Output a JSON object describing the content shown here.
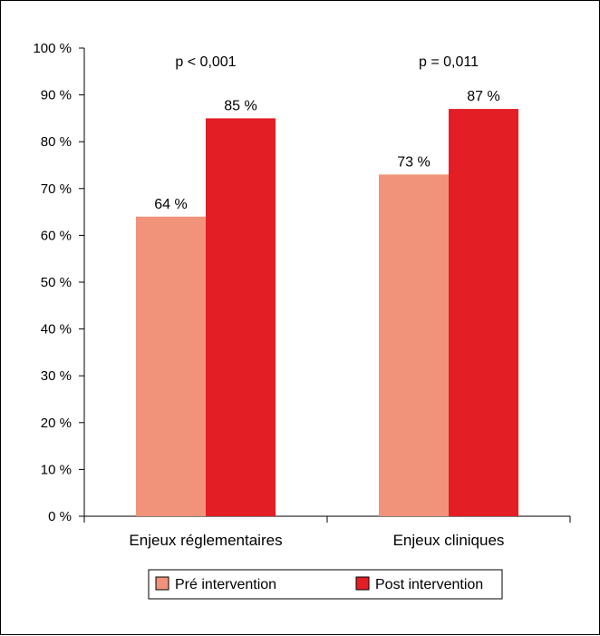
{
  "chart_data": {
    "type": "bar",
    "categories": [
      "Enjeux réglementaires",
      "Enjeux cliniques"
    ],
    "series": [
      {
        "name": "Pré intervention",
        "values": [
          64,
          73
        ],
        "labels": [
          "64 %",
          "73 %"
        ],
        "color": "#f0937a"
      },
      {
        "name": "Post intervention",
        "values": [
          85,
          87
        ],
        "labels": [
          "85 %",
          "87 %"
        ],
        "color": "#e31e25"
      }
    ],
    "annotations": [
      "p < 0,001",
      "p = 0,011"
    ],
    "y_ticks": [
      "0 %",
      "10 %",
      "20 %",
      "30 %",
      "40 %",
      "50 %",
      "60 %",
      "70 %",
      "80 %",
      "90 %",
      "100 %"
    ],
    "ylim": [
      0,
      100
    ],
    "grid": false,
    "legend_position": "bottom"
  }
}
